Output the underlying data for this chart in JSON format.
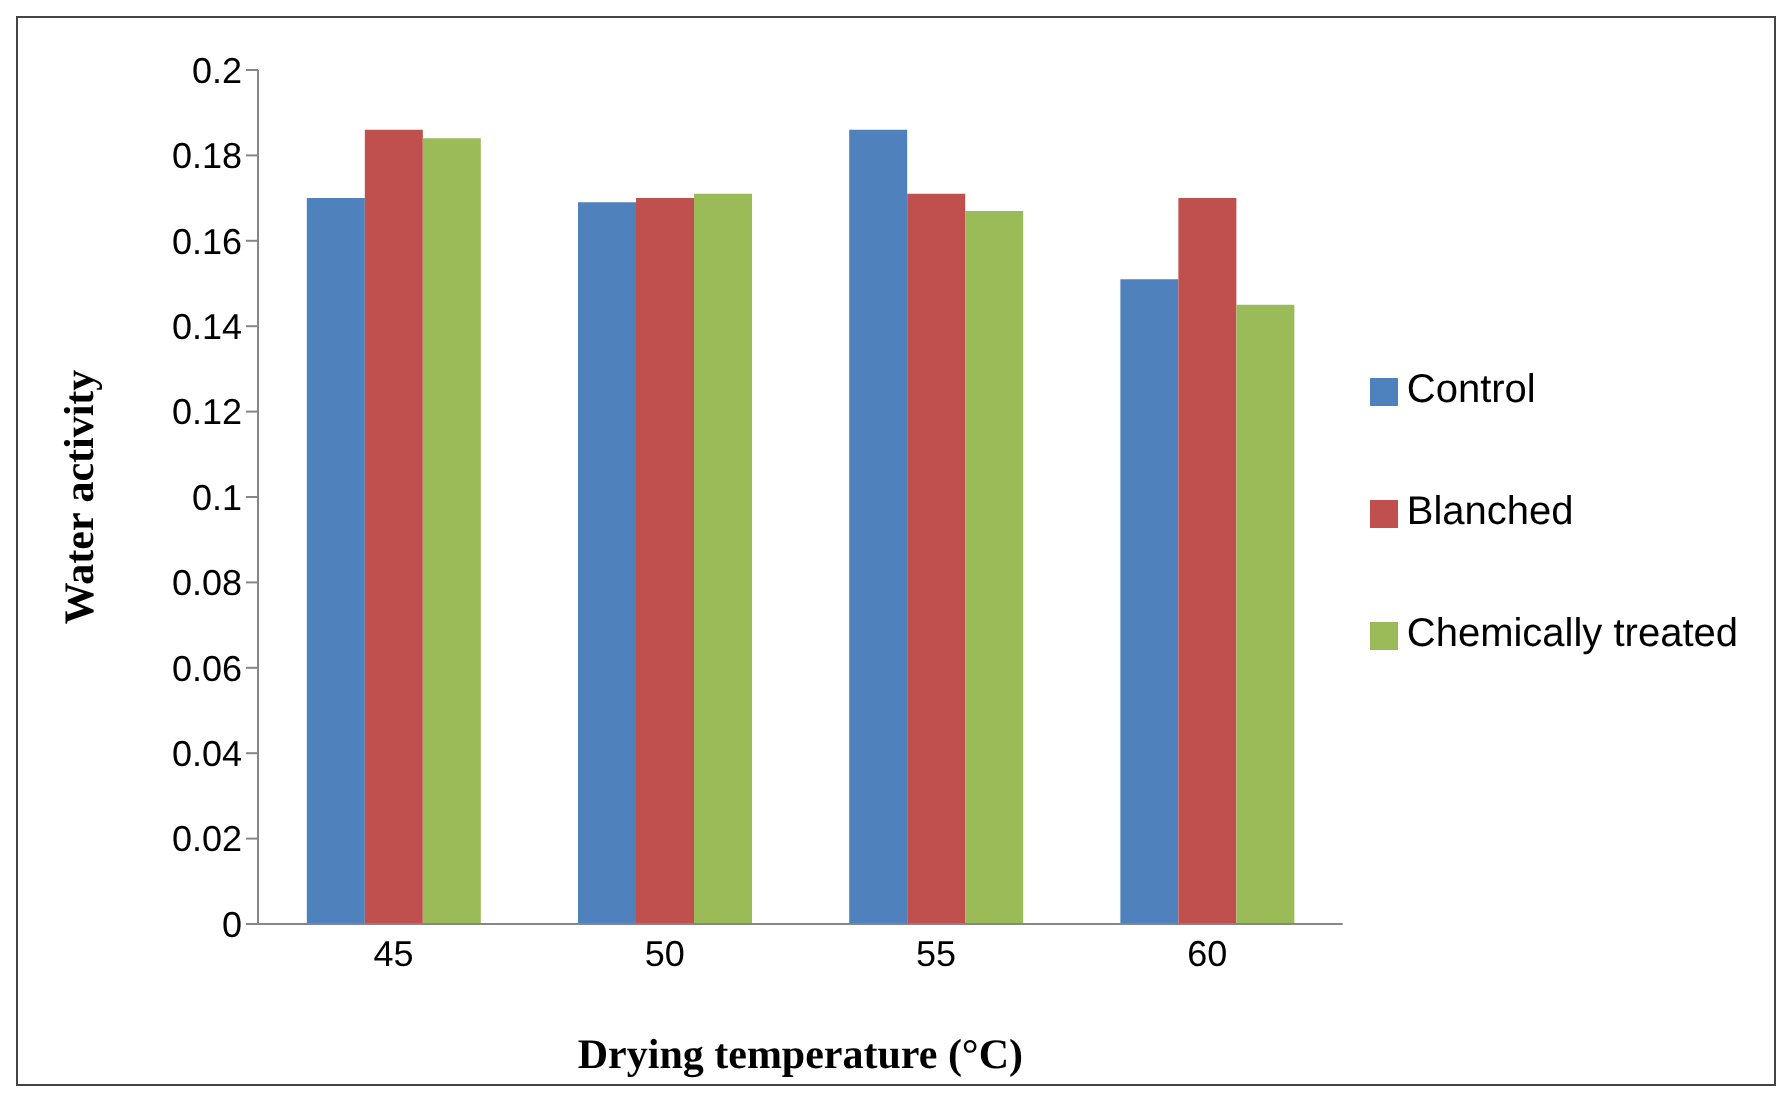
{
  "chart_data": {
    "type": "bar",
    "xlabel": "Drying temperature (°C)",
    "ylabel": "Water activity",
    "categories": [
      "45",
      "50",
      "55",
      "60"
    ],
    "series": [
      {
        "name": "Control",
        "color": "#4f81bd",
        "values": [
          0.17,
          0.169,
          0.186,
          0.151
        ]
      },
      {
        "name": "Blanched",
        "color": "#c0504d",
        "values": [
          0.186,
          0.17,
          0.171,
          0.17
        ]
      },
      {
        "name": "Chemically treated",
        "color": "#9bbb59",
        "values": [
          0.184,
          0.171,
          0.167,
          0.145
        ]
      }
    ],
    "ylim": [
      0,
      0.2
    ],
    "yticks": [
      0,
      0.02,
      0.04,
      0.06,
      0.08,
      0.1,
      0.12,
      0.14,
      0.16,
      0.18,
      0.2
    ],
    "grid": false,
    "legend": "right"
  }
}
